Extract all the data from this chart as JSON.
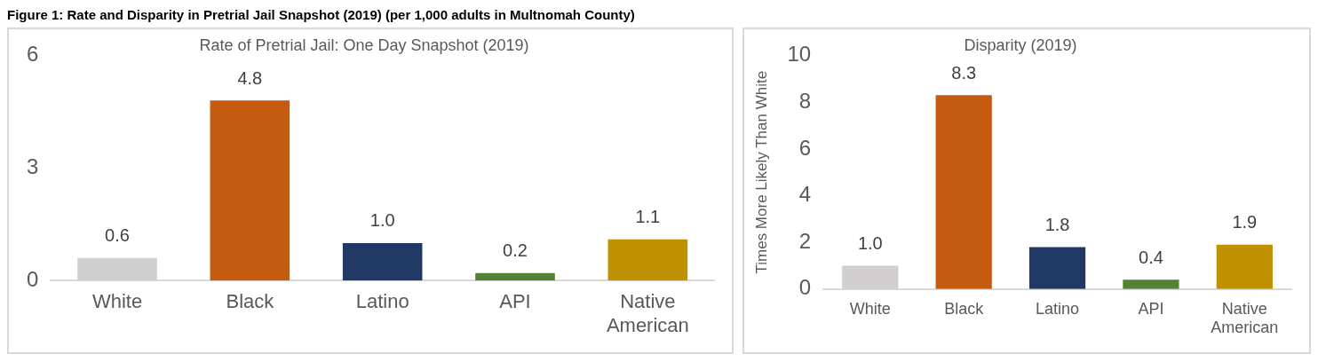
{
  "chart_data": [
    {
      "type": "bar",
      "title": "Rate of Pretrial Jail: One Day Snapshot (2019)",
      "annotations": [
        "Figure 1: Rate and Disparity in Pretrial Jail Snapshot (2019) (per 1,000 adults in Multnomah County)"
      ],
      "categories": [
        "White",
        "Black",
        "Latino",
        "API",
        "Native American"
      ],
      "values": [
        0.6,
        4.8,
        1.0,
        0.2,
        1.1
      ],
      "value_labels": [
        "0.6",
        "4.8",
        "1.0",
        "0.2",
        "1.1"
      ],
      "colors": [
        "#d0cece",
        "#c55a11",
        "#203864",
        "#548235",
        "#bf9000"
      ],
      "ylim": [
        0,
        6
      ],
      "yticks": [
        0,
        3,
        6
      ],
      "grid": false,
      "legend": false
    },
    {
      "type": "bar",
      "title": "Disparity (2019)",
      "ylabel": "Times More Likely Than White",
      "categories": [
        "White",
        "Black",
        "Latino",
        "API",
        "Native American"
      ],
      "values": [
        1.0,
        8.3,
        1.8,
        0.4,
        1.9
      ],
      "value_labels": [
        "1.0",
        "8.3",
        "1.8",
        "0.4",
        "1.9"
      ],
      "colors": [
        "#d0cece",
        "#c55a11",
        "#203864",
        "#548235",
        "#bf9000"
      ],
      "ylim": [
        0,
        10
      ],
      "yticks": [
        0,
        2,
        4,
        6,
        8,
        10
      ],
      "grid": false,
      "legend": false
    }
  ]
}
